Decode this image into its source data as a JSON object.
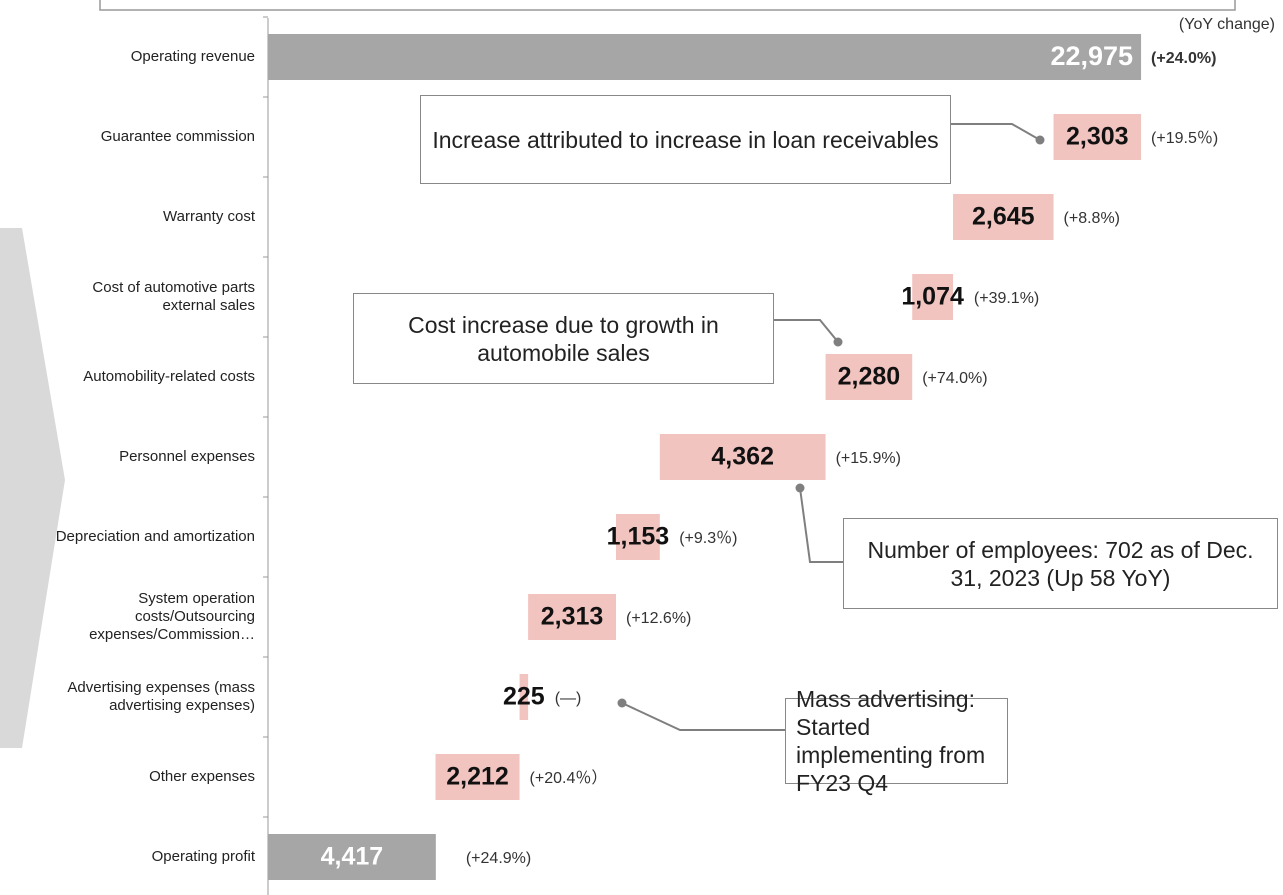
{
  "chart_data": {
    "type": "waterfall",
    "categories": [
      "Operating revenue",
      "Guarantee commission",
      "Warranty cost",
      "Cost of automotive parts external sales",
      "Automobility-related costs",
      "Personnel expenses",
      "Depreciation and amortization",
      "System operation costs/Outsourcing expenses/Commission…",
      "Advertising expenses (mass advertising expenses)",
      "Other expenses",
      "Operating profit"
    ],
    "values": [
      22975,
      2303,
      2645,
      1074,
      2280,
      4362,
      1153,
      2313,
      225,
      2212,
      4417
    ],
    "value_labels": [
      "22,975",
      "2,303",
      "2,645",
      "1,074",
      "2,280",
      "4,362",
      "1,153",
      "2,313",
      "225",
      "2,212",
      "4,417"
    ],
    "change_labels": [
      "(+24.0%)",
      "(+19.5％)",
      "(+8.8%)",
      "(+39.1%)",
      "(+74.0%)",
      "(+15.9%)",
      "(+9.3％)",
      "(+12.6%)",
      "(—)",
      "(+20.4％）",
      "(+24.9%)"
    ],
    "change_header": "(YoY change)",
    "xlim": [
      0,
      23000
    ],
    "total_color": "#a6a6a6",
    "cost_color": "#f2c4c0",
    "annotations": [
      "Increase attributed to increase in loan receivables",
      "Cost increase due to growth in automobile sales",
      "Number of employees: 702 as of Dec. 31, 2023 (Up 58 YoY)",
      "Mass advertising: Started implementing from FY23 Q4"
    ]
  }
}
